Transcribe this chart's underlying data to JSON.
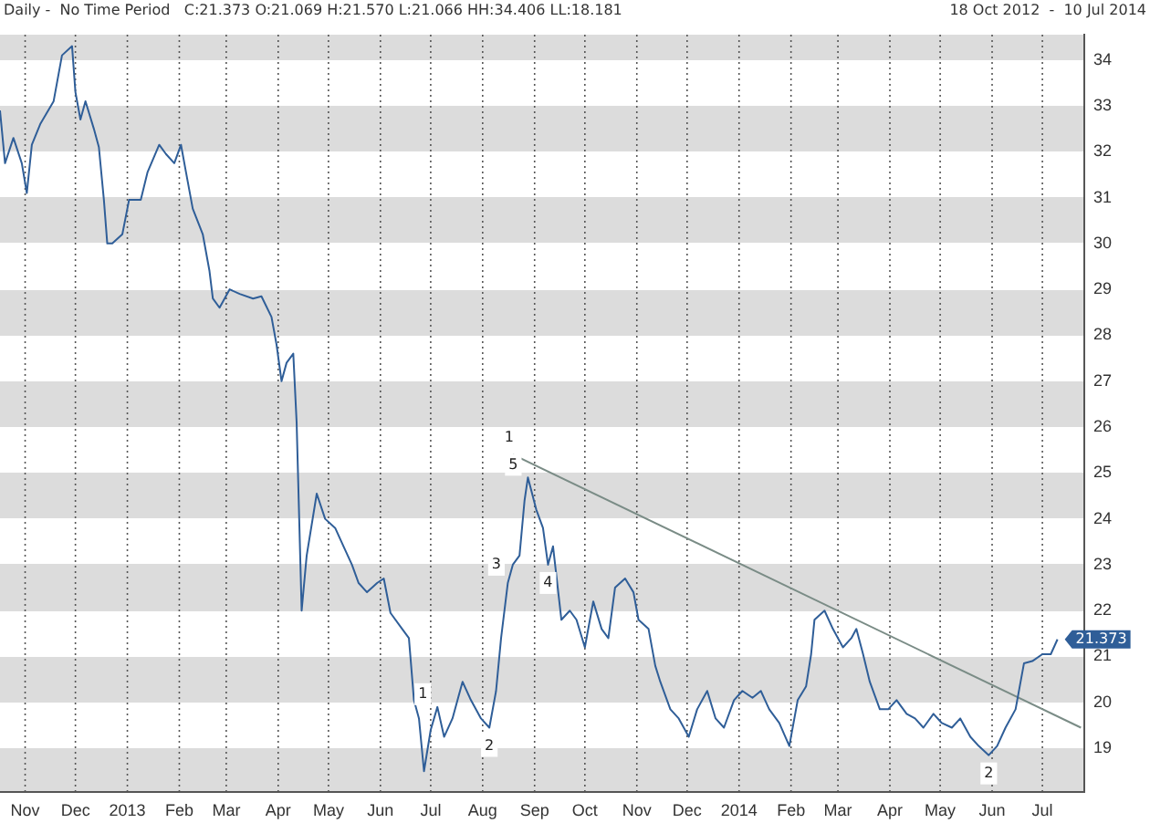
{
  "chart_data": {
    "type": "line",
    "title": "Daily -  No Time Period   C:21.373 O:21.069 H:21.570 L:21.066 HH:34.406 LL:18.181",
    "subtitle": "18 Oct 2012  -  10 Jul 2014",
    "xlim": [
      "2012-10-17",
      "2014-07-26"
    ],
    "xticks": [
      {
        "value": "2012-11-01",
        "label": "Nov"
      },
      {
        "value": "2012-12-01",
        "label": "Dec"
      },
      {
        "value": "2013-01-01",
        "label": "2013"
      },
      {
        "value": "2013-02-01",
        "label": "Feb"
      },
      {
        "value": "2013-03-01",
        "label": "Mar"
      },
      {
        "value": "2013-04-01",
        "label": "Apr"
      },
      {
        "value": "2013-05-01",
        "label": "May"
      },
      {
        "value": "2013-06-01",
        "label": "Jun"
      },
      {
        "value": "2013-07-01",
        "label": "Jul"
      },
      {
        "value": "2013-08-01",
        "label": "Aug"
      },
      {
        "value": "2013-09-01",
        "label": "Sep"
      },
      {
        "value": "2013-10-01",
        "label": "Oct"
      },
      {
        "value": "2013-11-01",
        "label": "Nov"
      },
      {
        "value": "2013-12-01",
        "label": "Dec"
      },
      {
        "value": "2014-01-01",
        "label": "2014"
      },
      {
        "value": "2014-02-01",
        "label": "Feb"
      },
      {
        "value": "2014-03-01",
        "label": "Mar"
      },
      {
        "value": "2014-04-01",
        "label": "Apr"
      },
      {
        "value": "2014-05-01",
        "label": "May"
      },
      {
        "value": "2014-06-01",
        "label": "Jun"
      },
      {
        "value": "2014-07-01",
        "label": "Jul"
      }
    ],
    "ylim": [
      18.04,
      34.55
    ],
    "yticks": [
      19,
      20,
      21,
      22,
      23,
      24,
      25,
      26,
      27,
      28,
      29,
      30,
      31,
      32,
      33,
      34
    ],
    "grid": true,
    "legend": false,
    "marker": "none",
    "line_style": "solid",
    "series": [
      {
        "type": "line",
        "color": "#2f5e98",
        "x": [
          "2012-10-17",
          "2012-10-20",
          "2012-10-25",
          "2012-10-30",
          "2012-11-02",
          "2012-11-05",
          "2012-11-10",
          "2012-11-18",
          "2012-11-23",
          "2012-11-29",
          "2012-12-01",
          "2012-12-04",
          "2012-12-07",
          "2012-12-12",
          "2012-12-15",
          "2012-12-18",
          "2012-12-20",
          "2012-12-23",
          "2012-12-29",
          "2013-01-02",
          "2013-01-09",
          "2013-01-13",
          "2013-01-20",
          "2013-01-24",
          "2013-01-29",
          "2013-02-02",
          "2013-02-05",
          "2013-02-09",
          "2013-02-15",
          "2013-02-19",
          "2013-02-21",
          "2013-02-25",
          "2013-03-03",
          "2013-03-09",
          "2013-03-17",
          "2013-03-22",
          "2013-03-28",
          "2013-03-31",
          "2013-04-03",
          "2013-04-06",
          "2013-04-10",
          "2013-04-12",
          "2013-04-15",
          "2013-04-18",
          "2013-04-24",
          "2013-04-29",
          "2013-05-05",
          "2013-05-10",
          "2013-05-15",
          "2013-05-19",
          "2013-05-24",
          "2013-05-30",
          "2013-06-03",
          "2013-06-07",
          "2013-06-14",
          "2013-06-18",
          "2013-06-21",
          "2013-06-24",
          "2013-06-27",
          "2013-07-01",
          "2013-07-05",
          "2013-07-09",
          "2013-07-14",
          "2013-07-20",
          "2013-07-25",
          "2013-07-31",
          "2013-08-05",
          "2013-08-09",
          "2013-08-12",
          "2013-08-16",
          "2013-08-19",
          "2013-08-23",
          "2013-08-26",
          "2013-08-28",
          "2013-09-02",
          "2013-09-06",
          "2013-09-09",
          "2013-09-12",
          "2013-09-17",
          "2013-09-22",
          "2013-09-26",
          "2013-10-01",
          "2013-10-06",
          "2013-10-11",
          "2013-10-15",
          "2013-10-19",
          "2013-10-25",
          "2013-10-30",
          "2013-11-02",
          "2013-11-08",
          "2013-11-12",
          "2013-11-15",
          "2013-11-21",
          "2013-11-26",
          "2013-12-02",
          "2013-12-07",
          "2013-12-13",
          "2013-12-18",
          "2013-12-23",
          "2013-12-29",
          "2014-01-03",
          "2014-01-09",
          "2014-01-14",
          "2014-01-19",
          "2014-01-25",
          "2014-01-31",
          "2014-02-05",
          "2014-02-10",
          "2014-02-13",
          "2014-02-15",
          "2014-02-21",
          "2014-02-26",
          "2014-03-04",
          "2014-03-09",
          "2014-03-12",
          "2014-03-16",
          "2014-03-20",
          "2014-03-26",
          "2014-03-31",
          "2014-04-05",
          "2014-04-11",
          "2014-04-16",
          "2014-04-21",
          "2014-04-27",
          "2014-05-02",
          "2014-05-08",
          "2014-05-13",
          "2014-05-19",
          "2014-05-24",
          "2014-05-30",
          "2014-06-04",
          "2014-06-09",
          "2014-06-15",
          "2014-06-18",
          "2014-06-20",
          "2014-06-25",
          "2014-07-01",
          "2014-07-06",
          "2014-07-10"
        ],
        "value_labels": [
          null,
          null,
          null,
          null,
          null,
          null,
          null,
          null,
          null,
          null,
          null,
          null,
          null,
          null,
          null,
          null,
          null,
          null,
          null,
          null,
          null,
          null,
          null,
          null,
          null,
          null,
          null,
          null,
          null,
          null,
          null,
          null,
          null,
          null,
          null,
          null,
          null,
          null,
          null,
          null,
          null,
          null,
          null,
          null,
          null,
          null,
          null,
          null,
          null,
          null,
          null,
          null,
          null,
          null,
          null,
          null,
          null,
          null,
          null,
          null,
          null,
          null,
          null,
          null,
          null,
          null,
          null,
          null,
          null,
          null,
          null,
          null,
          null,
          null,
          null,
          null,
          null,
          null,
          null,
          null,
          null,
          null,
          null,
          null,
          null,
          null,
          null,
          null,
          null,
          null,
          null,
          null,
          null,
          null,
          null,
          null,
          null,
          null,
          null,
          null,
          null,
          null,
          null,
          null,
          null,
          null,
          null,
          null,
          null,
          null,
          null,
          null,
          null,
          null,
          null,
          null,
          null,
          null,
          null,
          null,
          null,
          null,
          null,
          null,
          null,
          null,
          null,
          null,
          null,
          null,
          null,
          null,
          null,
          null,
          null,
          null,
          null,
          null,
          "21.373"
        ],
        "values": [
          32.9,
          31.75,
          32.3,
          31.75,
          31.1,
          32.15,
          32.6,
          33.1,
          34.1,
          34.3,
          33.3,
          32.7,
          33.1,
          32.5,
          32.1,
          30.95,
          30.0,
          30.0,
          30.2,
          30.95,
          30.95,
          31.55,
          32.15,
          31.95,
          31.75,
          32.15,
          31.55,
          30.76,
          30.2,
          29.4,
          28.8,
          28.6,
          29.0,
          28.9,
          28.8,
          28.85,
          28.4,
          27.8,
          27.0,
          27.4,
          27.6,
          26.1,
          22.0,
          23.2,
          24.55,
          24.0,
          23.8,
          23.4,
          23.0,
          22.6,
          22.4,
          22.6,
          22.7,
          21.95,
          21.6,
          21.4,
          20.05,
          19.65,
          18.5,
          19.4,
          19.9,
          19.25,
          19.65,
          20.45,
          20.05,
          19.65,
          19.45,
          20.25,
          21.4,
          22.6,
          23.0,
          23.2,
          24.4,
          24.9,
          24.2,
          23.8,
          23.0,
          23.4,
          21.8,
          22.0,
          21.8,
          21.2,
          22.2,
          21.6,
          21.4,
          22.5,
          22.7,
          22.4,
          21.8,
          21.6,
          20.8,
          20.45,
          19.85,
          19.65,
          19.25,
          19.85,
          20.25,
          19.65,
          19.45,
          20.05,
          20.25,
          20.1,
          20.25,
          19.85,
          19.55,
          19.05,
          20.05,
          20.35,
          21.05,
          21.8,
          22.0,
          21.6,
          21.2,
          21.4,
          21.6,
          21.05,
          20.45,
          19.85,
          19.85,
          20.05,
          19.75,
          19.65,
          19.45,
          19.75,
          19.55,
          19.45,
          19.65,
          19.25,
          19.05,
          18.85,
          19.05,
          19.45,
          19.85,
          20.45,
          20.85,
          20.9,
          21.05,
          21.05,
          21.373
        ]
      },
      {
        "type": "line",
        "color": "#7a8c86",
        "x": [
          "2013-08-19",
          "2014-07-24"
        ],
        "values": [
          25.4,
          19.45
        ]
      }
    ],
    "annotations": [
      {
        "text": "1",
        "x": "2013-07-05",
        "y": 19.9
      },
      {
        "text": "2",
        "x": "2013-08-05",
        "y": 19.45
      },
      {
        "text": "3",
        "x": "2013-08-19",
        "y": 23.0
      },
      {
        "text": "4",
        "x": "2013-09-09",
        "y": 23.0
      },
      {
        "text": "5",
        "x": "2013-08-28",
        "y": 24.9
      },
      {
        "text": "1",
        "x": "2013-08-19",
        "y": 25.4
      },
      {
        "text": "2",
        "x": "2014-05-30",
        "y": 18.85
      }
    ]
  }
}
